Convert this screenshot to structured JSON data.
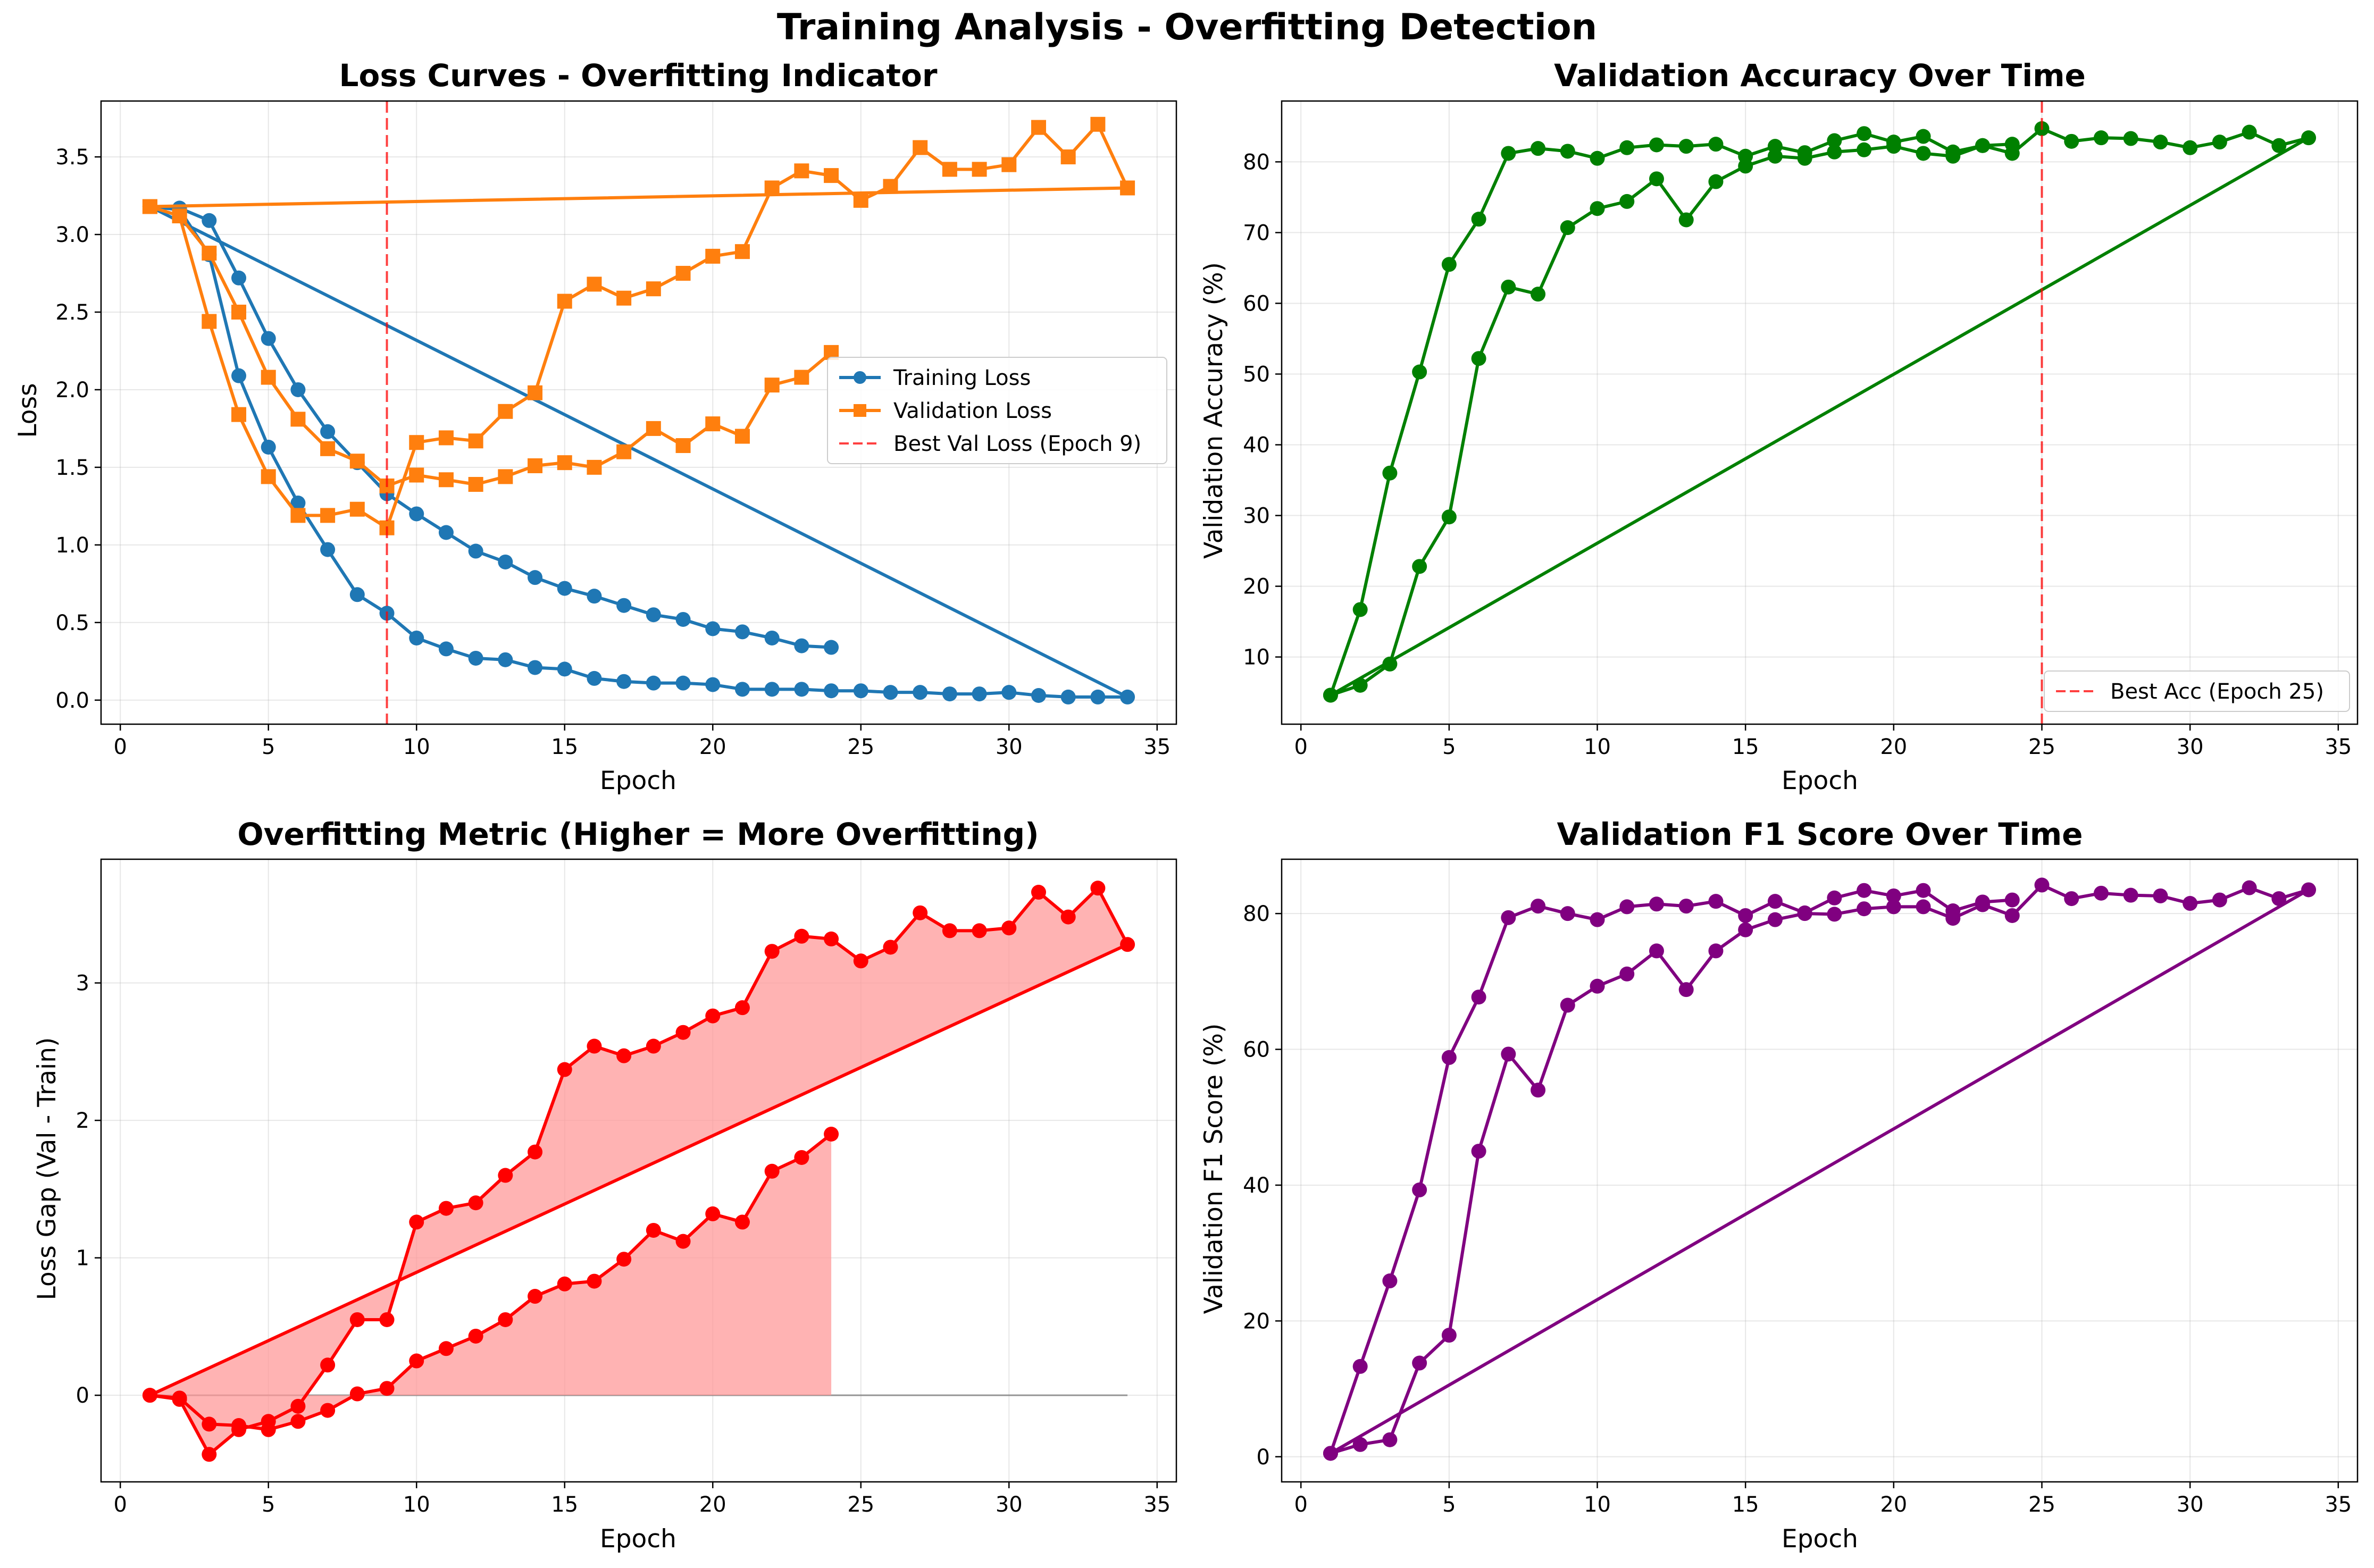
{
  "figure": {
    "title": "Training Analysis - Overfitting Detection"
  },
  "colors": {
    "train": "#1f77b4",
    "val": "#ff7f0e",
    "acc": "#008000",
    "gap": "#ff0000",
    "gap_fill": "#ff9999",
    "f1": "#800080",
    "best": "#ff0000",
    "zero_line": "#808080"
  },
  "chart_data": [
    {
      "type": "line",
      "title": "Loss Curves - Overfitting Indicator",
      "xlabel": "Epoch",
      "ylabel": "Loss",
      "xlim": [
        -0.65,
        35.65
      ],
      "ylim": [
        -0.155,
        3.86
      ],
      "xticks": [
        0,
        5,
        10,
        15,
        20,
        25,
        30,
        35
      ],
      "yticks": [
        0.0,
        0.5,
        1.0,
        1.5,
        2.0,
        2.5,
        3.0,
        3.5
      ],
      "ytick_labels": [
        "0.0",
        "0.5",
        "1.0",
        "1.5",
        "2.0",
        "2.5",
        "3.0",
        "3.5"
      ],
      "grid": true,
      "legend": "center-right",
      "series": [
        {
          "name": "Training Loss",
          "color": "#1f77b4",
          "marker": "circle",
          "x": [
            1,
            2,
            3,
            4,
            5,
            6,
            7,
            8,
            9,
            10,
            11,
            12,
            13,
            14,
            15,
            16,
            17,
            18,
            19,
            20,
            21,
            22,
            23,
            24,
            25,
            26,
            27,
            28,
            29,
            30,
            31,
            32,
            33,
            34,
            1,
            2,
            3,
            4,
            5,
            6,
            7,
            8,
            9,
            10,
            11,
            12,
            13,
            14,
            15,
            16,
            17,
            18,
            19,
            20,
            21,
            22,
            23,
            24
          ],
          "y": [
            3.18,
            3.16,
            2.87,
            2.09,
            1.63,
            1.27,
            0.97,
            0.68,
            0.56,
            0.4,
            0.33,
            0.27,
            0.26,
            0.21,
            0.2,
            0.14,
            0.12,
            0.11,
            0.11,
            0.1,
            0.07,
            0.07,
            0.07,
            0.06,
            0.06,
            0.05,
            0.05,
            0.04,
            0.04,
            0.05,
            0.03,
            0.02,
            0.02,
            0.02,
            3.18,
            3.17,
            3.09,
            2.72,
            2.33,
            2.0,
            1.73,
            1.53,
            1.33,
            1.2,
            1.08,
            0.96,
            0.89,
            0.79,
            0.72,
            0.67,
            0.61,
            0.55,
            0.52,
            0.46,
            0.44,
            0.4,
            0.35,
            0.34
          ]
        },
        {
          "name": "Validation Loss",
          "color": "#ff7f0e",
          "marker": "square",
          "x": [
            1,
            2,
            3,
            4,
            5,
            6,
            7,
            8,
            9,
            10,
            11,
            12,
            13,
            14,
            15,
            16,
            17,
            18,
            19,
            20,
            21,
            22,
            23,
            24,
            25,
            26,
            27,
            28,
            29,
            30,
            31,
            32,
            33,
            34,
            1,
            2,
            3,
            4,
            5,
            6,
            7,
            8,
            9,
            10,
            11,
            12,
            13,
            14,
            15,
            16,
            17,
            18,
            19,
            20,
            21,
            22,
            23,
            24
          ],
          "y": [
            3.18,
            3.12,
            2.44,
            1.84,
            1.44,
            1.19,
            1.19,
            1.23,
            1.11,
            1.66,
            1.69,
            1.67,
            1.86,
            1.98,
            2.57,
            2.68,
            2.59,
            2.65,
            2.75,
            2.86,
            2.89,
            3.3,
            3.41,
            3.38,
            3.22,
            3.31,
            3.56,
            3.42,
            3.42,
            3.45,
            3.69,
            3.5,
            3.71,
            3.3,
            3.18,
            3.12,
            2.88,
            2.5,
            2.08,
            1.81,
            1.62,
            1.54,
            1.38,
            1.45,
            1.42,
            1.39,
            1.44,
            1.51,
            1.53,
            1.5,
            1.6,
            1.75,
            1.64,
            1.78,
            1.7,
            2.03,
            2.08,
            2.24
          ]
        }
      ],
      "vline": {
        "x": 9,
        "name": "Best Val Loss (Epoch 9)",
        "color": "#ff0000"
      }
    },
    {
      "type": "line",
      "title": "Validation Accuracy Over Time",
      "xlabel": "Epoch",
      "ylabel": "Validation Accuracy (%)",
      "xlim": [
        -0.65,
        35.65
      ],
      "ylim": [
        0.5,
        88.6
      ],
      "xticks": [
        0,
        5,
        10,
        15,
        20,
        25,
        30,
        35
      ],
      "yticks": [
        10,
        20,
        30,
        40,
        50,
        60,
        70,
        80
      ],
      "ytick_labels": [
        "10",
        "20",
        "30",
        "40",
        "50",
        "60",
        "70",
        "80"
      ],
      "grid": true,
      "legend": "bottom-right",
      "series": [
        {
          "name": "",
          "color": "#008000",
          "marker": "circle",
          "x": [
            1,
            2,
            3,
            4,
            5,
            6,
            7,
            8,
            9,
            10,
            11,
            12,
            13,
            14,
            15,
            16,
            17,
            18,
            19,
            20,
            21,
            22,
            23,
            24,
            25,
            26,
            27,
            28,
            29,
            30,
            31,
            32,
            33,
            34,
            1,
            2,
            3,
            4,
            5,
            6,
            7,
            8,
            9,
            10,
            11,
            12,
            13,
            14,
            15,
            16,
            17,
            18,
            19,
            20,
            21,
            22,
            23,
            24
          ],
          "y": [
            4.6,
            6.0,
            9.0,
            22.8,
            29.8,
            52.2,
            62.3,
            61.3,
            70.7,
            73.4,
            74.4,
            77.6,
            71.8,
            77.2,
            79.4,
            80.8,
            80.5,
            81.4,
            81.7,
            82.2,
            81.2,
            80.8,
            82.3,
            81.2,
            84.7,
            82.9,
            83.4,
            83.3,
            82.8,
            82.0,
            82.8,
            84.2,
            82.3,
            83.4,
            4.6,
            16.7,
            36.0,
            50.3,
            65.5,
            71.9,
            81.2,
            81.9,
            81.5,
            80.5,
            82.0,
            82.4,
            82.2,
            82.5,
            80.8,
            82.2,
            81.3,
            83.0,
            84.0,
            82.8,
            83.6,
            81.4,
            82.3,
            82.5
          ]
        }
      ],
      "vline": {
        "x": 25,
        "name": "Best Acc (Epoch 25)",
        "color": "#ff0000"
      }
    },
    {
      "type": "area",
      "title": "Overfitting Metric (Higher = More Overfitting)",
      "xlabel": "Epoch",
      "ylabel": "Loss Gap (Val - Train)",
      "xlim": [
        -0.65,
        35.65
      ],
      "ylim": [
        -0.63,
        3.9
      ],
      "xticks": [
        0,
        5,
        10,
        15,
        20,
        25,
        30,
        35
      ],
      "yticks": [
        0,
        1,
        2,
        3
      ],
      "ytick_labels": [
        "0",
        "1",
        "2",
        "3"
      ],
      "grid": true,
      "hline": 0,
      "series": [
        {
          "name": "",
          "color": "#ff0000",
          "marker": "circle",
          "fill": true,
          "x": [
            1,
            2,
            3,
            4,
            5,
            6,
            7,
            8,
            9,
            10,
            11,
            12,
            13,
            14,
            15,
            16,
            17,
            18,
            19,
            20,
            21,
            22,
            23,
            24,
            25,
            26,
            27,
            28,
            29,
            30,
            31,
            32,
            33,
            34,
            1,
            2,
            3,
            4,
            5,
            6,
            7,
            8,
            9,
            10,
            11,
            12,
            13,
            14,
            15,
            16,
            17,
            18,
            19,
            20,
            21,
            22,
            23,
            24
          ],
          "y": [
            0,
            -0.03,
            -0.43,
            -0.25,
            -0.19,
            -0.08,
            0.22,
            0.55,
            0.55,
            1.26,
            1.36,
            1.4,
            1.6,
            1.77,
            2.37,
            2.54,
            2.47,
            2.54,
            2.64,
            2.76,
            2.82,
            3.23,
            3.34,
            3.32,
            3.16,
            3.26,
            3.51,
            3.38,
            3.38,
            3.4,
            3.66,
            3.48,
            3.69,
            3.28,
            0,
            -0.02,
            -0.21,
            -0.22,
            -0.25,
            -0.19,
            -0.11,
            0.01,
            0.05,
            0.25,
            0.34,
            0.43,
            0.55,
            0.72,
            0.81,
            0.83,
            0.99,
            1.2,
            1.12,
            1.32,
            1.26,
            1.63,
            1.73,
            1.9
          ]
        }
      ]
    },
    {
      "type": "line",
      "title": "Validation F1 Score Over Time",
      "xlabel": "Epoch",
      "ylabel": "Validation F1 Score (%)",
      "xlim": [
        -0.65,
        35.65
      ],
      "ylim": [
        -3.7,
        88.0
      ],
      "xticks": [
        0,
        5,
        10,
        15,
        20,
        25,
        30,
        35
      ],
      "yticks": [
        0,
        20,
        40,
        60,
        80
      ],
      "ytick_labels": [
        "0",
        "20",
        "40",
        "60",
        "80"
      ],
      "grid": true,
      "series": [
        {
          "name": "",
          "color": "#800080",
          "marker": "circle",
          "x": [
            1,
            2,
            3,
            4,
            5,
            6,
            7,
            8,
            9,
            10,
            11,
            12,
            13,
            14,
            15,
            16,
            17,
            18,
            19,
            20,
            21,
            22,
            23,
            24,
            25,
            26,
            27,
            28,
            29,
            30,
            31,
            32,
            33,
            34,
            1,
            2,
            3,
            4,
            5,
            6,
            7,
            8,
            9,
            10,
            11,
            12,
            13,
            14,
            15,
            16,
            17,
            18,
            19,
            20,
            21,
            22,
            23,
            24
          ],
          "y": [
            0.5,
            1.8,
            2.5,
            13.8,
            17.9,
            45.0,
            59.3,
            54.0,
            66.5,
            69.3,
            71.1,
            74.5,
            68.8,
            74.5,
            77.6,
            79.1,
            80.0,
            79.9,
            80.7,
            81.0,
            81.0,
            79.3,
            81.3,
            79.7,
            84.2,
            82.2,
            83.0,
            82.7,
            82.6,
            81.5,
            82.0,
            83.8,
            82.2,
            83.5,
            0.5,
            13.3,
            25.9,
            39.3,
            58.8,
            67.7,
            79.4,
            81.1,
            80.0,
            79.1,
            81.0,
            81.4,
            81.1,
            81.8,
            79.7,
            81.8,
            80.1,
            82.3,
            83.4,
            82.6,
            83.4,
            80.4,
            81.7,
            82.0
          ]
        }
      ]
    }
  ]
}
